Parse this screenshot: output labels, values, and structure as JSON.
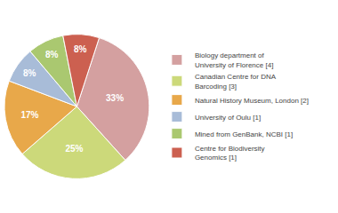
{
  "chart_data": {
    "type": "pie",
    "categories": [
      "Biology department of\nUniversity of Florence [4]",
      "Canadian Centre for DNA\nBarcoding [3]",
      "Natural History Museum, London [2]",
      "University of Oulu [1]",
      "Mined from GenBank, NCBI [1]",
      "Centre for Biodiversity\nGenomics [1]"
    ],
    "values": [
      33,
      25,
      17,
      8,
      8,
      8
    ],
    "value_labels": [
      "33%",
      "25%",
      "17%",
      "8%",
      "8%",
      "8%"
    ],
    "colors": [
      "#d4a0a0",
      "#ccd97a",
      "#e8a84a",
      "#a8bcd8",
      "#aac870",
      "#cc6050"
    ],
    "data_labels": true,
    "legend": "right"
  }
}
